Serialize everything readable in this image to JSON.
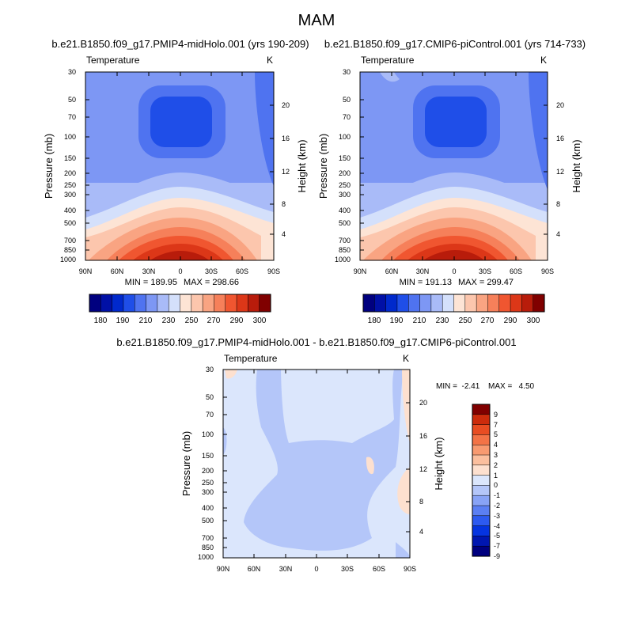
{
  "page": {
    "title": "MAM"
  },
  "colors": {
    "abs_scale": [
      "#00007f",
      "#0010a6",
      "#0029cc",
      "#1f4ee8",
      "#4f73f0",
      "#7d97f4",
      "#a9bbf8",
      "#d4e0fb",
      "#fde4d5",
      "#fcc6ad",
      "#f9a482",
      "#f6805a",
      "#f05630",
      "#dc3718",
      "#b81c0b",
      "#800000"
    ],
    "diff_scale": [
      "#00007f",
      "#0016b0",
      "#0534e0",
      "#2d5af0",
      "#5b7ff3",
      "#88a3f6",
      "#b4c6f9",
      "#dbe6fc",
      "#fde0cf",
      "#fbbf9e",
      "#f89a70",
      "#f37346",
      "#e84d22",
      "#cc2c0c",
      "#800000"
    ]
  },
  "chart_data": [
    {
      "type": "heatmap",
      "title": "b.e21.B1850.f09_g17.PMIP4-midHolo.001 (yrs 190-209)",
      "variable": "Temperature",
      "units": "K",
      "xlabel": "",
      "ylabel": "Pressure (mb)",
      "y2label": "Height (km)",
      "xticks": [
        "90N",
        "60N",
        "30N",
        "0",
        "30S",
        "60S",
        "90S"
      ],
      "yticks": [
        "30",
        "50",
        "70",
        "100",
        "150",
        "200",
        "250",
        "300",
        "400",
        "500",
        "700",
        "850",
        "1000"
      ],
      "y2ticks": [
        "4",
        "8",
        "12",
        "16",
        "20"
      ],
      "min_label": "MIN = 189.95",
      "max_label": "MAX = 298.66",
      "min": 189.95,
      "max": 298.66,
      "colorbar_labels": [
        "180",
        "190",
        "210",
        "230",
        "250",
        "270",
        "290",
        "300"
      ]
    },
    {
      "type": "heatmap",
      "title": "b.e21.B1850.f09_g17.CMIP6-piControl.001 (yrs 714-733)",
      "variable": "Temperature",
      "units": "K",
      "xlabel": "",
      "ylabel": "Pressure (mb)",
      "y2label": "Height (km)",
      "xticks": [
        "90N",
        "60N",
        "30N",
        "0",
        "30S",
        "60S",
        "90S"
      ],
      "yticks": [
        "30",
        "50",
        "70",
        "100",
        "150",
        "200",
        "250",
        "300",
        "400",
        "500",
        "700",
        "850",
        "1000"
      ],
      "y2ticks": [
        "4",
        "8",
        "12",
        "16",
        "20"
      ],
      "min_label": "MIN = 191.13",
      "max_label": "MAX = 299.47",
      "min": 191.13,
      "max": 299.47,
      "colorbar_labels": [
        "180",
        "190",
        "210",
        "230",
        "250",
        "270",
        "290",
        "300"
      ]
    },
    {
      "type": "heatmap",
      "title": "b.e21.B1850.f09_g17.PMIP4-midHolo.001 - b.e21.B1850.f09_g17.CMIP6-piControl.001",
      "variable": "Temperature",
      "units": "K",
      "xlabel": "",
      "ylabel": "Pressure (mb)",
      "y2label": "Height (km)",
      "xticks": [
        "90N",
        "60N",
        "30N",
        "0",
        "30S",
        "60S",
        "90S"
      ],
      "yticks": [
        "30",
        "50",
        "70",
        "100",
        "150",
        "200",
        "250",
        "300",
        "400",
        "500",
        "700",
        "850",
        "1000"
      ],
      "y2ticks": [
        "4",
        "8",
        "12",
        "16",
        "20"
      ],
      "min_label": "MIN =  -2.41",
      "max_label": "MAX =   4.50",
      "min": -2.41,
      "max": 4.5,
      "colorbar_labels": [
        "9",
        "7",
        "5",
        "4",
        "3",
        "2",
        "1",
        "0",
        "-1",
        "-2",
        "-3",
        "-4",
        "-5",
        "-7",
        "-9"
      ]
    }
  ]
}
